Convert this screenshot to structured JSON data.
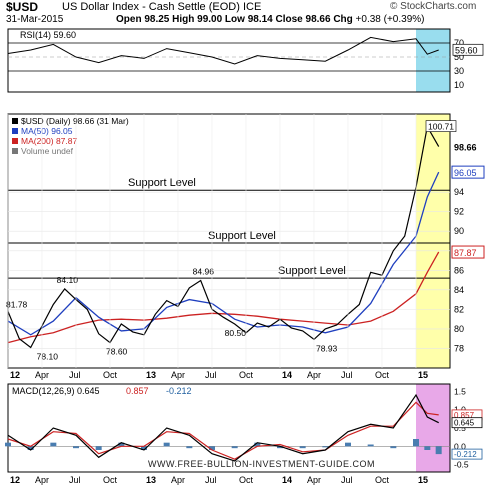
{
  "header": {
    "symbol": "$USD",
    "description": "US Dollar Index - Cash Settle (EOD) ICE",
    "date": "31-Mar-2015",
    "ohlc_prefix": "Open 98.25  High 99.00  Low 98.14  Close 98.66  Chg",
    "chg_value": "+0.38 (+0.39%)",
    "brand": "© StockCharts.com",
    "watermark": "WWW.FREE-BULLION-INVESTMENT-GUIDE.COM"
  },
  "colors": {
    "price": "#000000",
    "ma50": "#1f3fbf",
    "ma200": "#cc2222",
    "highlight_price": "#ffffaa",
    "highlight_ind": "#99ddee",
    "macd_highlight": "#e8a8e8"
  },
  "chart_data": [
    {
      "type": "line",
      "title": "RSI(14) 59.60",
      "current_label": "59.60",
      "yticks": [
        70,
        50,
        30,
        10
      ],
      "ylim": [
        0,
        90
      ],
      "levels": [
        70,
        30
      ],
      "series": [
        {
          "name": "RSI(14)",
          "x": [
            "2012-01",
            "2012-03",
            "2012-05",
            "2012-07",
            "2012-09",
            "2012-11",
            "2013-01",
            "2013-03",
            "2013-05",
            "2013-07",
            "2013-09",
            "2013-11",
            "2014-01",
            "2014-03",
            "2014-05",
            "2014-07",
            "2014-09",
            "2014-11",
            "2015-01",
            "2015-02",
            "2015-03"
          ],
          "values": [
            55,
            60,
            68,
            50,
            42,
            52,
            48,
            62,
            56,
            50,
            40,
            52,
            48,
            46,
            44,
            60,
            78,
            72,
            76,
            54,
            60
          ]
        }
      ]
    },
    {
      "type": "line",
      "title": "$USD (Daily) 98.66 (31 Mar)",
      "legend": [
        "$USD (Daily) 98.66 (31 Mar)",
        "MA(50) 96.05",
        "MA(200) 87.87",
        "Volume undef"
      ],
      "ylim": [
        76,
        102
      ],
      "yticks": [
        78,
        80,
        82,
        84,
        86,
        88,
        90,
        92,
        94
      ],
      "price_tags": {
        "close": "98.66",
        "ma50": "96.05",
        "ma200": "87.87",
        "peak": "100.71"
      },
      "annotations": [
        "81.78",
        "78.10",
        "84.10",
        "78.60",
        "84.96",
        "80.50",
        "78.93"
      ],
      "support_levels": [
        {
          "label": "Support Level",
          "value": 94.2
        },
        {
          "label": "Support Level",
          "value": 88.8
        },
        {
          "label": "Support Level",
          "value": 85.2
        }
      ],
      "series": [
        {
          "name": "$USD",
          "x": [
            "2012-01",
            "2012-02",
            "2012-03",
            "2012-05",
            "2012-06",
            "2012-07",
            "2012-08",
            "2012-09",
            "2012-10",
            "2012-11",
            "2012-12",
            "2013-01",
            "2013-02",
            "2013-03",
            "2013-04",
            "2013-05",
            "2013-06",
            "2013-07",
            "2013-08",
            "2013-09",
            "2013-10",
            "2013-11",
            "2013-12",
            "2014-01",
            "2014-02",
            "2014-03",
            "2014-04",
            "2014-05",
            "2014-06",
            "2014-07",
            "2014-08",
            "2014-09",
            "2014-10",
            "2014-11",
            "2014-12",
            "2015-01",
            "2015-02",
            "2015-03"
          ],
          "values": [
            81.78,
            79.0,
            78.1,
            82.5,
            84.1,
            83.0,
            82.0,
            79.5,
            78.6,
            80.5,
            79.7,
            79.4,
            81.5,
            82.9,
            82.3,
            84.2,
            84.96,
            82.0,
            81.2,
            80.5,
            79.6,
            80.6,
            80.2,
            81.0,
            80.1,
            79.8,
            78.93,
            80.0,
            80.4,
            81.5,
            82.5,
            85.8,
            85.5,
            88.0,
            89.5,
            94.5,
            100.71,
            98.66
          ]
        },
        {
          "name": "MA(50)",
          "x": [
            "2012-01",
            "2012-03",
            "2012-05",
            "2012-07",
            "2012-09",
            "2012-11",
            "2013-01",
            "2013-03",
            "2013-05",
            "2013-07",
            "2013-09",
            "2013-11",
            "2014-01",
            "2014-03",
            "2014-05",
            "2014-07",
            "2014-09",
            "2014-11",
            "2015-01",
            "2015-02",
            "2015-03"
          ],
          "values": [
            80.8,
            79.4,
            80.8,
            83.2,
            81.2,
            79.8,
            80.0,
            82.2,
            83.0,
            82.6,
            81.0,
            80.2,
            80.4,
            80.2,
            79.6,
            80.2,
            82.6,
            86.6,
            89.5,
            93.5,
            96.05
          ]
        },
        {
          "name": "MA(200)",
          "x": [
            "2012-01",
            "2012-03",
            "2012-05",
            "2012-07",
            "2012-09",
            "2012-11",
            "2013-01",
            "2013-03",
            "2013-05",
            "2013-07",
            "2013-09",
            "2013-11",
            "2014-01",
            "2014-03",
            "2014-05",
            "2014-07",
            "2014-09",
            "2014-11",
            "2015-01",
            "2015-02",
            "2015-03"
          ],
          "values": [
            78.6,
            79.2,
            79.6,
            80.4,
            80.9,
            81.0,
            80.9,
            81.1,
            81.4,
            81.6,
            81.5,
            81.3,
            81.0,
            80.8,
            80.6,
            80.4,
            80.8,
            81.8,
            83.6,
            85.8,
            87.87
          ]
        }
      ]
    },
    {
      "type": "line",
      "title": "MACD(12,26,9) 0.645, 0.857, -0.212",
      "legend": [
        "MACD(12,26,9) 0.645",
        "0.857",
        "-0.212"
      ],
      "tags": [
        "0.857",
        "0.645",
        "-0.212"
      ],
      "yticks": [
        "1.5",
        "1.0",
        "0.5",
        "0.0",
        "-0.5"
      ],
      "ylim": [
        -0.7,
        1.7
      ],
      "series": [
        {
          "name": "MACD",
          "x": [
            "2012-01",
            "2012-03",
            "2012-05",
            "2012-07",
            "2012-09",
            "2012-11",
            "2013-01",
            "2013-03",
            "2013-05",
            "2013-07",
            "2013-09",
            "2013-11",
            "2014-01",
            "2014-03",
            "2014-05",
            "2014-07",
            "2014-09",
            "2014-11",
            "2015-01",
            "2015-02",
            "2015-03"
          ],
          "values": [
            0.3,
            -0.1,
            0.5,
            0.3,
            -0.3,
            0.1,
            -0.1,
            0.5,
            0.3,
            -0.2,
            -0.4,
            0.1,
            0.0,
            -0.2,
            -0.1,
            0.4,
            0.6,
            0.5,
            1.4,
            0.8,
            0.645
          ]
        },
        {
          "name": "Signal",
          "x": [
            "2012-01",
            "2012-03",
            "2012-05",
            "2012-07",
            "2012-09",
            "2012-11",
            "2013-01",
            "2013-03",
            "2013-05",
            "2013-07",
            "2013-09",
            "2013-11",
            "2014-01",
            "2014-03",
            "2014-05",
            "2014-07",
            "2014-09",
            "2014-11",
            "2015-01",
            "2015-02",
            "2015-03"
          ],
          "values": [
            0.2,
            0.0,
            0.4,
            0.35,
            -0.2,
            0.0,
            0.0,
            0.4,
            0.35,
            -0.1,
            -0.35,
            0.0,
            0.05,
            -0.15,
            -0.1,
            0.3,
            0.55,
            0.55,
            1.2,
            0.9,
            0.857
          ]
        },
        {
          "name": "Histogram",
          "x": [
            "2012-01",
            "2012-03",
            "2012-05",
            "2012-07",
            "2012-09",
            "2012-11",
            "2013-01",
            "2013-03",
            "2013-05",
            "2013-07",
            "2013-09",
            "2013-11",
            "2014-01",
            "2014-03",
            "2014-05",
            "2014-07",
            "2014-09",
            "2014-11",
            "2015-01",
            "2015-02",
            "2015-03"
          ],
          "values": [
            0.1,
            -0.1,
            0.1,
            -0.05,
            -0.1,
            0.1,
            -0.1,
            0.1,
            -0.05,
            -0.1,
            -0.05,
            0.1,
            -0.05,
            -0.05,
            0.0,
            0.1,
            0.05,
            -0.05,
            0.2,
            -0.1,
            -0.212
          ]
        }
      ]
    }
  ],
  "x_axis": {
    "labels": [
      "12",
      "Apr",
      "Jul",
      "Oct",
      "13",
      "Apr",
      "Jul",
      "Oct",
      "14",
      "Apr",
      "Jul",
      "Oct",
      "15"
    ],
    "dates": [
      "2012-01",
      "2012-04",
      "2012-07",
      "2012-10",
      "2013-01",
      "2013-04",
      "2013-07",
      "2013-10",
      "2014-01",
      "2014-04",
      "2014-07",
      "2014-10",
      "2015-01"
    ],
    "bold": [
      "12",
      "13",
      "14",
      "15"
    ]
  }
}
